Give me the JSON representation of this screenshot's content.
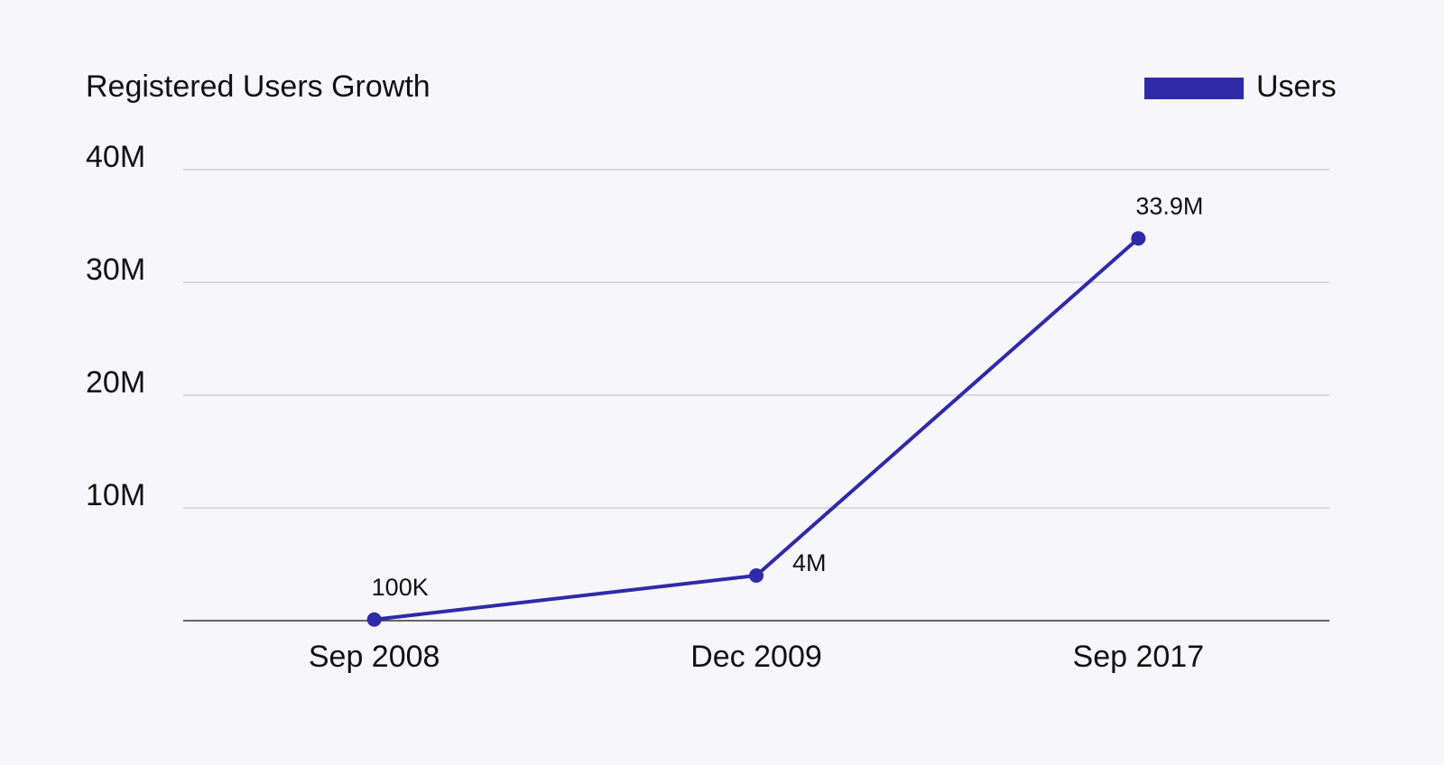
{
  "chart_data": {
    "type": "line",
    "title": "Registered Users Growth",
    "categories": [
      "Sep 2008",
      "Dec 2009",
      "Sep 2017"
    ],
    "series": [
      {
        "name": "Users",
        "color": "#2e2aa8",
        "values": [
          100000,
          4000000,
          33900000
        ],
        "value_labels": [
          "100K",
          "4M",
          "33.9M"
        ]
      }
    ],
    "ylim": [
      0,
      40000000
    ],
    "yticks": [
      {
        "value": 10000000,
        "label": "10M"
      },
      {
        "value": 20000000,
        "label": "20M"
      },
      {
        "value": 30000000,
        "label": "30M"
      },
      {
        "value": 40000000,
        "label": "40M"
      }
    ],
    "grid": true,
    "legend": "top-right"
  }
}
